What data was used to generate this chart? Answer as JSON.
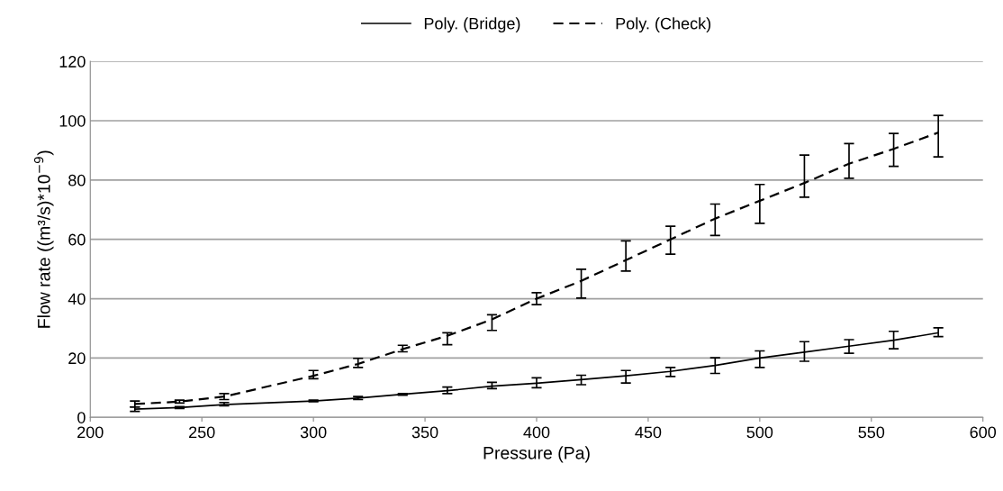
{
  "chart_data": {
    "type": "line",
    "xlabel": "Pressure (Pa)",
    "ylabel": "Flow rate ((m³/s)*10$^{−9}$)",
    "x": [
      220,
      240,
      260,
      300,
      320,
      340,
      360,
      380,
      400,
      420,
      440,
      460,
      480,
      500,
      520,
      540,
      560,
      580
    ],
    "series": [
      {
        "name": "Poly. (Bridge)",
        "color": "#000000",
        "line_style": "solid",
        "values": [
          2.8,
          3.3,
          4.3,
          5.5,
          6.5,
          7.8,
          9,
          10.5,
          11.5,
          12.7,
          14,
          15.5,
          17.5,
          20,
          22,
          24,
          26,
          28.5
        ],
        "errors": [
          [
            2,
            3.5
          ],
          [
            3,
            3.6
          ],
          [
            3.9,
            5
          ],
          [
            5.3,
            5.8
          ],
          [
            6,
            7
          ],
          [
            7.5,
            8
          ],
          [
            8,
            10.2
          ],
          [
            9.7,
            11.8
          ],
          [
            10,
            13.3
          ],
          [
            11,
            14.2
          ],
          [
            11.6,
            15.8
          ],
          [
            13.8,
            16.8
          ],
          [
            14.8,
            20.1
          ],
          [
            16.8,
            22.4
          ],
          [
            18.9,
            25.5
          ],
          [
            21.6,
            26.2
          ],
          [
            23.1,
            29
          ],
          [
            27.2,
            30.2
          ]
        ]
      },
      {
        "name": "Poly. (Check)",
        "color": "#000000",
        "line_style": "dashed",
        "values": [
          4.5,
          5.3,
          7,
          14,
          18,
          23,
          27.5,
          33,
          40,
          46,
          53,
          60,
          67,
          73,
          79,
          85.5,
          90.5,
          96
        ],
        "errors": [
          [
            3.5,
            5.5
          ],
          [
            4.8,
            5.8
          ],
          [
            6,
            8
          ],
          [
            13,
            15.8
          ],
          [
            16.8,
            19.9
          ],
          [
            22.1,
            24.3
          ],
          [
            24.5,
            28.5
          ],
          [
            29.3,
            34.6
          ],
          [
            38,
            42
          ],
          [
            40.2,
            49.9
          ],
          [
            49.3,
            59.5
          ],
          [
            55,
            64.4
          ],
          [
            61.3,
            71.9
          ],
          [
            65.4,
            78.5
          ],
          [
            74.2,
            88.4
          ],
          [
            80.6,
            92.3
          ],
          [
            84.6,
            95.7
          ],
          [
            87.8,
            101.8
          ]
        ]
      }
    ],
    "xlim": [
      200,
      600
    ],
    "xticks": [
      200,
      250,
      300,
      350,
      400,
      450,
      500,
      550,
      600
    ],
    "ylim": [
      0,
      120
    ],
    "yticks": [
      0,
      20,
      40,
      60,
      80,
      100,
      120
    ],
    "grid": "y",
    "legend": "top",
    "marker": "none"
  }
}
